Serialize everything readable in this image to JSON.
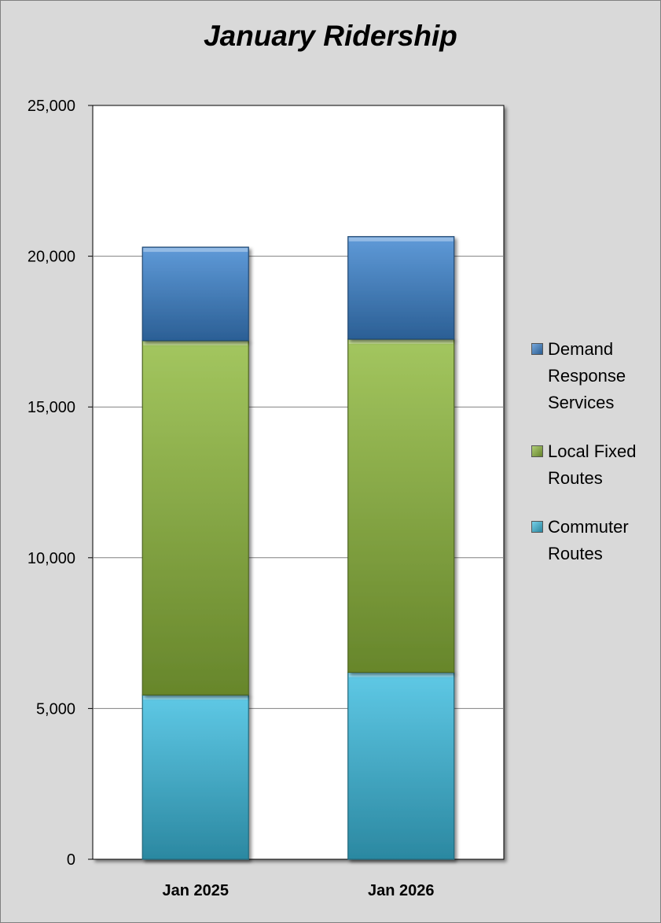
{
  "chart_data": {
    "type": "bar",
    "stacked": true,
    "title": "January Ridership",
    "xlabel": "",
    "ylabel": "",
    "categories": [
      "Jan 2025",
      "Jan 2026"
    ],
    "ylim": [
      0,
      25000
    ],
    "yticks": [
      0,
      5000,
      10000,
      15000,
      20000,
      25000
    ],
    "ytick_labels": [
      "0",
      "5,000",
      "10,000",
      "15,000",
      "20,000",
      "25,000"
    ],
    "grid": true,
    "legend_position": "right",
    "series": [
      {
        "name": "Commuter Routes",
        "color": "#3cbde0",
        "values": [
          5450,
          6200
        ]
      },
      {
        "name": "Local Fixed Routes",
        "color": "#8fba3c",
        "values": [
          11750,
          11050
        ]
      },
      {
        "name": "Demand Response Services",
        "color": "#3c84cf",
        "values": [
          3100,
          3400
        ]
      }
    ],
    "legend_order": [
      "Demand Response Services",
      "Local Fixed Routes",
      "Commuter Routes"
    ]
  }
}
